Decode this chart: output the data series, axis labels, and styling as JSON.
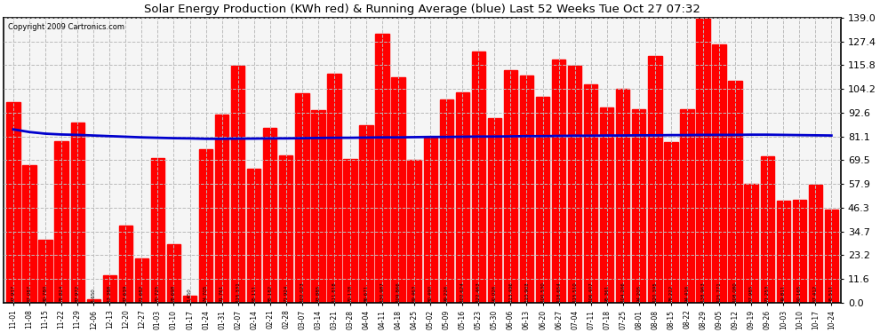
{
  "title": "Solar Energy Production (KWh red) & Running Average (blue) Last 52 Weeks Tue Oct 27 07:32",
  "copyright": "Copyright 2009 Cartronics.com",
  "bar_color": "#FF0000",
  "avg_line_color": "#0000CD",
  "background_color": "#FFFFFF",
  "plot_bg_color": "#F5F5F5",
  "grid_color": "#BBBBBB",
  "ylim": [
    0,
    139.0
  ],
  "yticks": [
    0.0,
    11.6,
    23.2,
    34.7,
    46.3,
    57.9,
    69.5,
    81.1,
    92.6,
    104.2,
    115.8,
    127.4,
    139.0
  ],
  "categories": [
    "11-01",
    "11-08",
    "11-15",
    "11-22",
    "11-29",
    "12-06",
    "12-13",
    "12-20",
    "12-27",
    "01-03",
    "01-10",
    "01-17",
    "01-24",
    "01-31",
    "02-07",
    "02-14",
    "02-21",
    "02-28",
    "03-07",
    "03-14",
    "03-21",
    "03-28",
    "04-04",
    "04-11",
    "04-18",
    "04-25",
    "05-02",
    "05-09",
    "05-16",
    "05-23",
    "05-30",
    "06-06",
    "06-13",
    "06-20",
    "06-27",
    "07-04",
    "07-11",
    "07-18",
    "07-25",
    "08-01",
    "08-08",
    "08-15",
    "08-22",
    "08-29",
    "09-05",
    "09-12",
    "09-19",
    "09-26",
    "10-03",
    "10-10",
    "10-17",
    "10-24"
  ],
  "values": [
    97.937,
    67.087,
    30.78,
    78.824,
    87.972,
    1.65,
    13.388,
    37.639,
    21.682,
    70.725,
    28.698,
    3.45,
    74.705,
    91.761,
    115.331,
    65.111,
    85.182,
    71.924,
    102.023,
    93.885,
    111.818,
    70.178,
    86.671,
    130.987,
    109.866,
    69.463,
    80.49,
    99.226,
    102.624,
    122.463,
    90.026,
    113.496,
    110.903,
    100.53,
    118.654,
    115.51,
    106.407,
    95.361,
    104.266,
    94.205,
    120.395,
    78.222,
    94.416,
    138.963,
    125.771,
    108.08,
    57.985,
    71.253,
    49.811,
    50.165,
    57.412,
    45.511
  ],
  "running_avg": [
    84.5,
    83.2,
    82.4,
    82.0,
    81.8,
    81.5,
    81.2,
    80.9,
    80.6,
    80.4,
    80.2,
    80.1,
    79.9,
    79.9,
    80.0,
    80.0,
    80.1,
    80.1,
    80.2,
    80.3,
    80.4,
    80.4,
    80.5,
    80.6,
    80.6,
    80.7,
    80.8,
    80.8,
    80.9,
    81.0,
    81.0,
    81.1,
    81.2,
    81.2,
    81.3,
    81.4,
    81.4,
    81.5,
    81.5,
    81.6,
    81.6,
    81.7,
    81.7,
    81.8,
    81.8,
    81.8,
    81.9,
    81.9,
    81.8,
    81.7,
    81.6,
    81.5
  ]
}
